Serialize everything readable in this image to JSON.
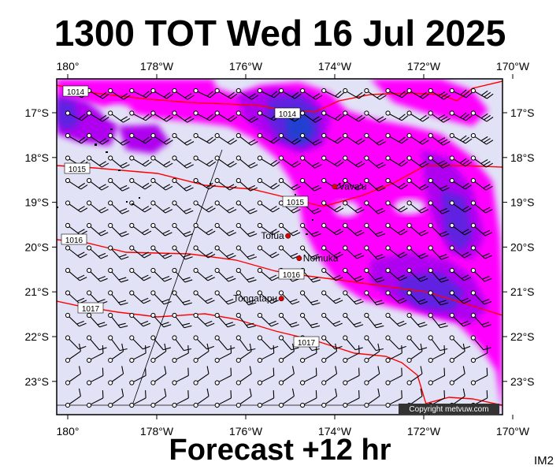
{
  "title": "1300 TOT Wed 16 Jul 2025",
  "subtitle": "Forecast +12 hr",
  "map_code": "IM2",
  "copyright": "Copyright metvuw.com",
  "axes": {
    "lon_ticks": [
      "180°",
      "178°W",
      "176°W",
      "174°W",
      "172°W",
      "170°W"
    ],
    "lat_ticks": [
      "17°S",
      "18°S",
      "19°S",
      "20°S",
      "21°S",
      "22°S",
      "23°S"
    ]
  },
  "places": [
    {
      "name": "Vava'u",
      "lon": -174.0,
      "lat": -18.65
    },
    {
      "name": "Tofua",
      "lon": -175.05,
      "lat": -19.75
    },
    {
      "name": "Nomuka",
      "lon": -174.8,
      "lat": -20.25
    },
    {
      "name": "Tongatapu",
      "lon": -175.2,
      "lat": -21.15
    }
  ],
  "isobar_labels": [
    "1014",
    "1014",
    "1015",
    "1015",
    "1016",
    "1016",
    "1017",
    "1017"
  ],
  "colors": {
    "background": "#e2e2f6",
    "isobar": "#ff0000",
    "rain_light": "#ff00ff",
    "rain_mid": "#b000f0",
    "rain_heavy": "#6020e0",
    "rain_max": "#2040d0"
  }
}
